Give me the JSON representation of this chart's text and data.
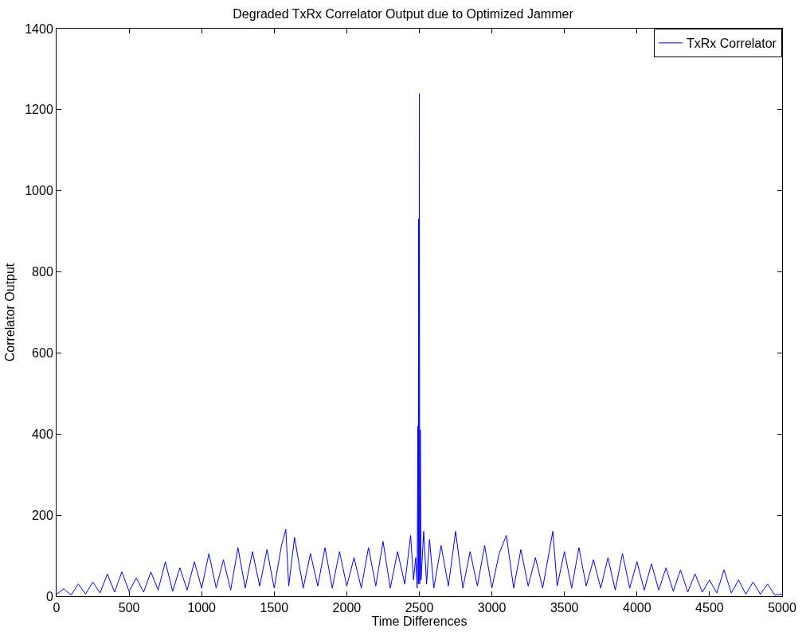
{
  "chart_data": {
    "type": "line",
    "title": "Degraded TxRx Correlator Output due to Optimized Jammer",
    "xlabel": "Time Differences",
    "ylabel": "Correlator Output",
    "xlim": [
      0,
      5000
    ],
    "xticks": [
      0,
      500,
      1000,
      1500,
      2000,
      2500,
      3000,
      3500,
      4000,
      4500,
      5000
    ],
    "ylim": [
      0,
      1400
    ],
    "yticks": [
      0,
      200,
      400,
      600,
      800,
      1000,
      1200,
      1400
    ],
    "legend": "top right",
    "marker": "none",
    "line_style": "solid",
    "series": [
      {
        "name": "TxRx Correlator",
        "color": "#0000ff",
        "x": [
          0,
          50,
          100,
          150,
          200,
          250,
          300,
          350,
          400,
          450,
          500,
          550,
          600,
          650,
          700,
          750,
          800,
          850,
          900,
          950,
          1000,
          1050,
          1100,
          1150,
          1200,
          1250,
          1300,
          1350,
          1400,
          1450,
          1500,
          1550,
          1580,
          1600,
          1640,
          1700,
          1750,
          1800,
          1850,
          1900,
          1950,
          2000,
          2050,
          2100,
          2150,
          2200,
          2250,
          2300,
          2350,
          2400,
          2440,
          2460,
          2475,
          2485,
          2490,
          2493,
          2495,
          2497,
          2500,
          2503,
          2507,
          2512,
          2530,
          2550,
          2570,
          2600,
          2650,
          2700,
          2750,
          2800,
          2850,
          2900,
          2950,
          3000,
          3050,
          3100,
          3150,
          3200,
          3250,
          3300,
          3350,
          3420,
          3450,
          3500,
          3550,
          3600,
          3650,
          3700,
          3750,
          3800,
          3850,
          3900,
          3950,
          4000,
          4050,
          4100,
          4150,
          4200,
          4250,
          4300,
          4350,
          4400,
          4450,
          4500,
          4550,
          4600,
          4650,
          4700,
          4750,
          4800,
          4850,
          4900,
          4950,
          5000
        ],
        "values": [
          5,
          18,
          3,
          30,
          5,
          35,
          8,
          55,
          10,
          60,
          12,
          45,
          10,
          60,
          15,
          85,
          12,
          70,
          15,
          85,
          20,
          105,
          20,
          90,
          15,
          120,
          20,
          110,
          25,
          115,
          20,
          125,
          165,
          25,
          145,
          20,
          105,
          25,
          120,
          20,
          110,
          25,
          95,
          20,
          120,
          25,
          135,
          20,
          110,
          30,
          150,
          40,
          95,
          20,
          420,
          30,
          930,
          40,
          1240,
          30,
          410,
          40,
          160,
          30,
          140,
          20,
          125,
          25,
          160,
          20,
          110,
          25,
          125,
          20,
          105,
          150,
          20,
          115,
          25,
          95,
          20,
          160,
          25,
          110,
          20,
          120,
          25,
          90,
          20,
          95,
          15,
          105,
          20,
          85,
          15,
          80,
          15,
          70,
          12,
          65,
          10,
          55,
          10,
          40,
          8,
          65,
          8,
          40,
          5,
          35,
          5,
          30,
          3,
          5
        ]
      }
    ]
  }
}
